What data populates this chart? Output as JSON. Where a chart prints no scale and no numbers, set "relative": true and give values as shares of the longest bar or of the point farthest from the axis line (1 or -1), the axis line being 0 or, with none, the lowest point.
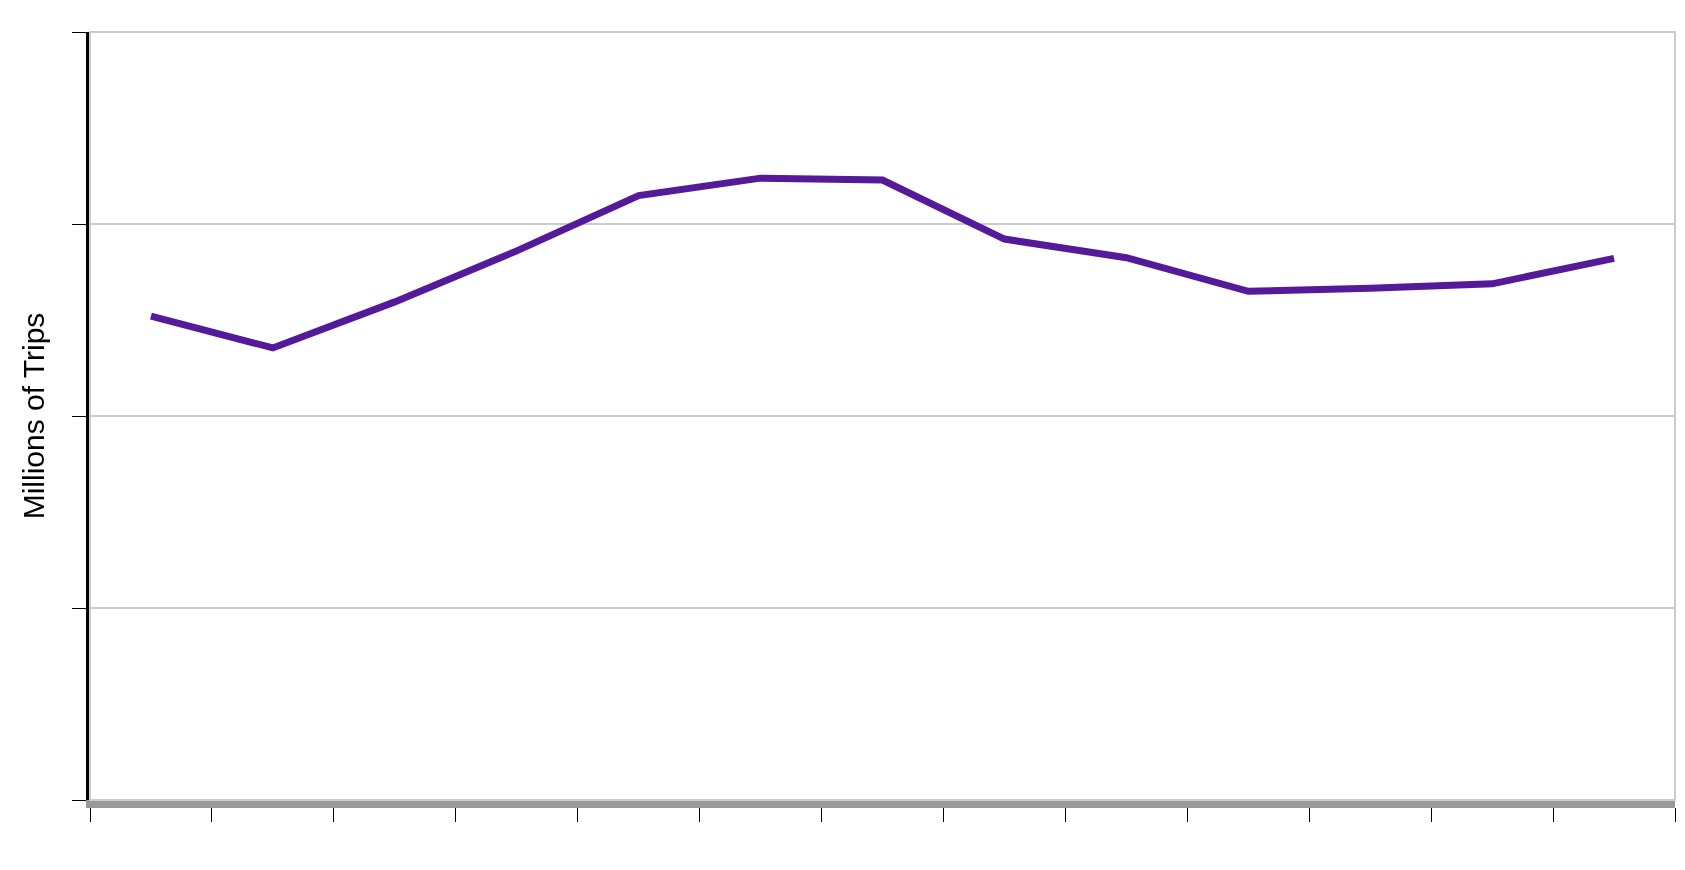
{
  "chart_data": {
    "type": "line",
    "ylabel": "Millions of Trips",
    "relative": true,
    "categories": [
      null,
      null,
      null,
      null,
      null,
      null,
      null,
      null,
      null,
      null,
      null,
      null,
      null
    ],
    "series": [
      {
        "color": "#551a99",
        "values": [
          0.778,
          0.727,
          0.801,
          0.883,
          0.972,
          1,
          0.997,
          0.902,
          0.872,
          0.818,
          0.823,
          0.83,
          0.871
        ]
      }
    ],
    "grid": "y",
    "marker": "none",
    "line_style": "solid"
  }
}
